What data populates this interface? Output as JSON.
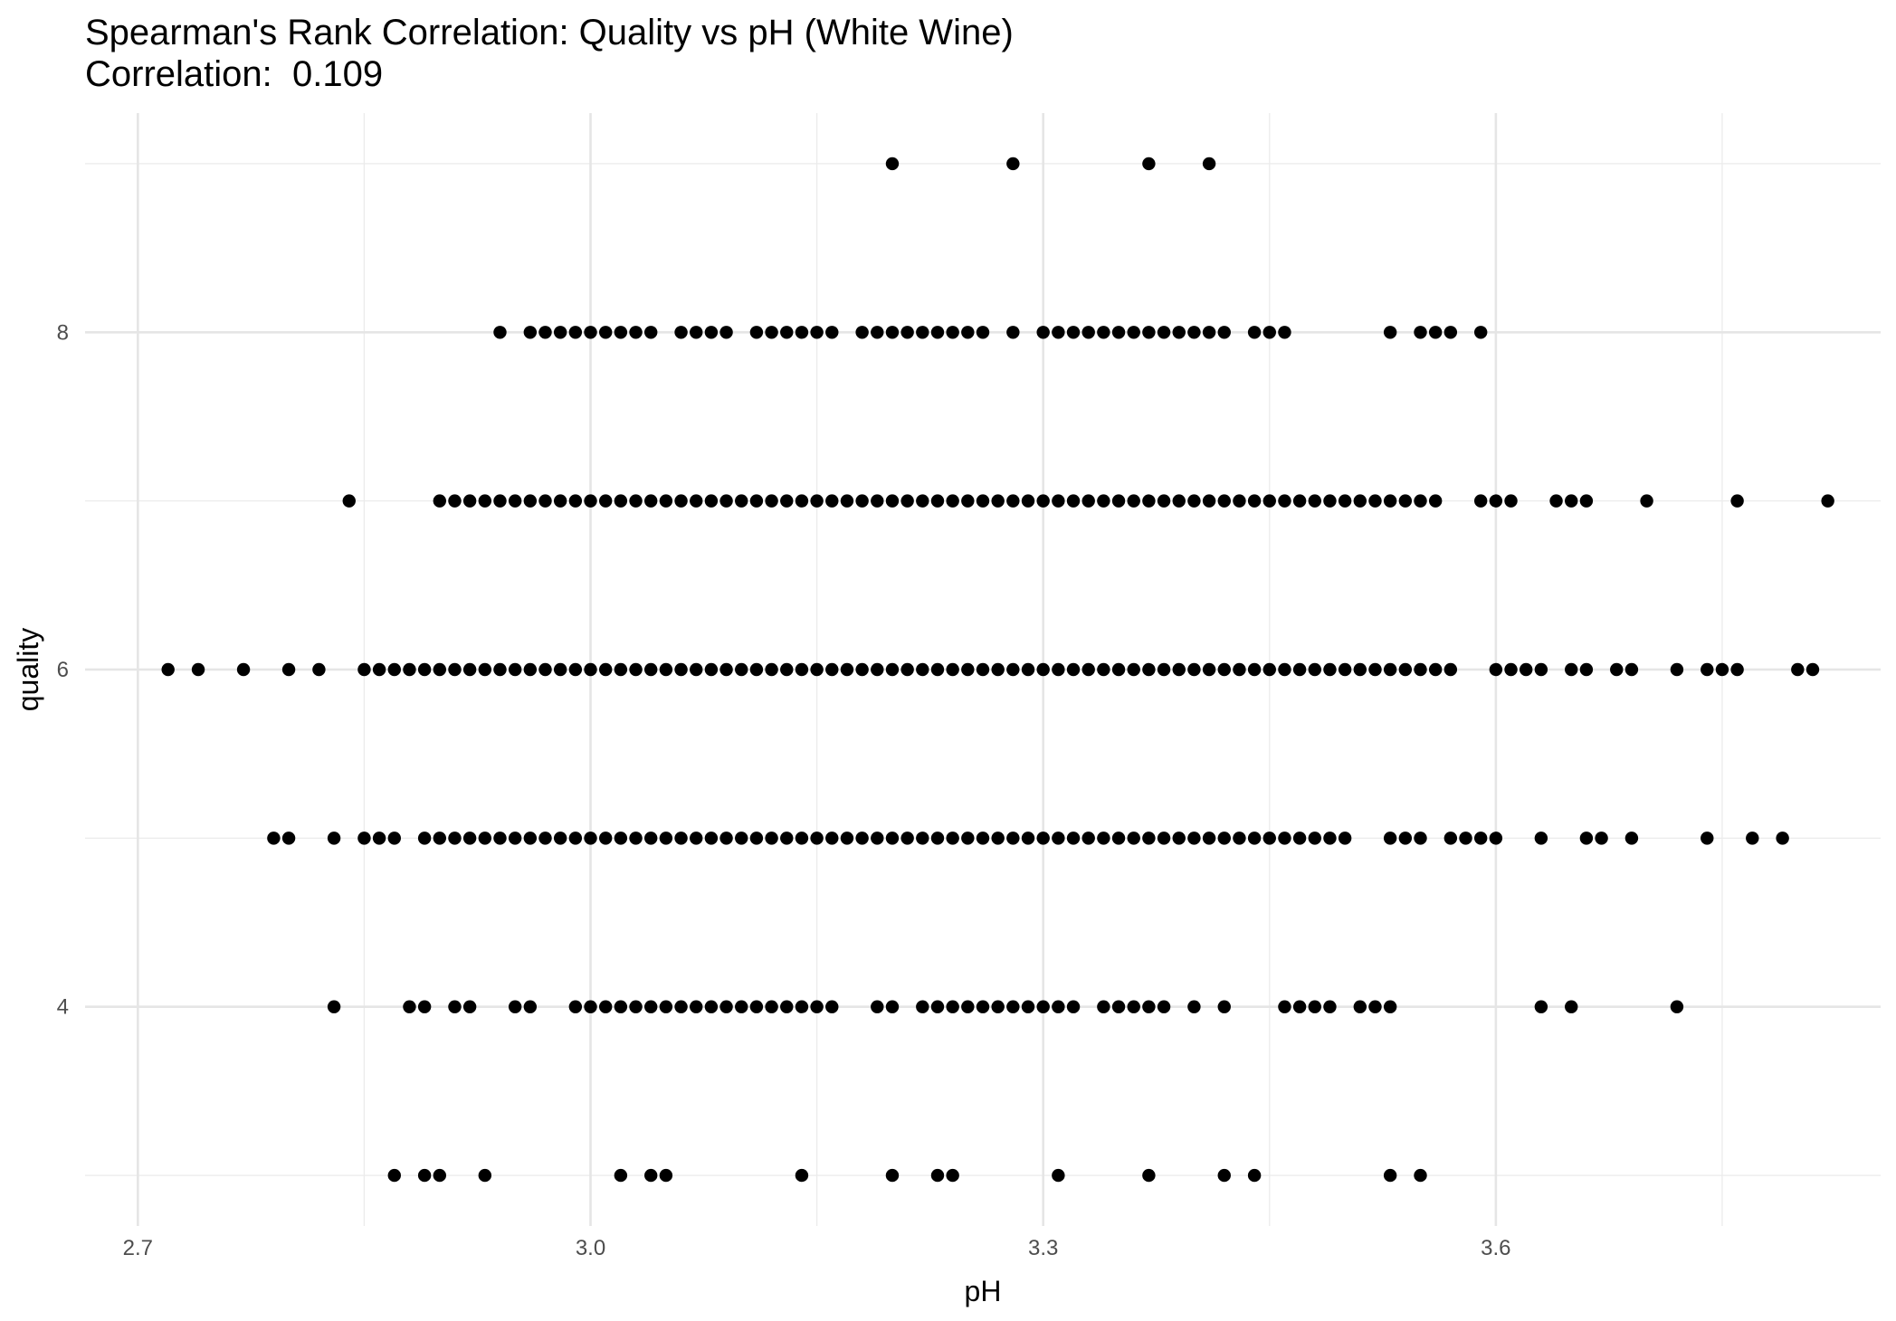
{
  "chart_data": {
    "type": "scatter",
    "title": "Spearman's Rank Correlation: Quality vs pH (White Wine)",
    "subtitle_label": "Correlation:",
    "correlation": "0.109",
    "xlabel": "pH",
    "ylabel": "quality",
    "xlim": [
      2.665,
      3.855
    ],
    "ylim": [
      2.7,
      9.3
    ],
    "x_ticks": [
      "2.7",
      "3.0",
      "3.3",
      "3.6"
    ],
    "x_minor": [
      2.85,
      3.15,
      3.45,
      3.75
    ],
    "y_ticks": [
      "4",
      "6",
      "8"
    ],
    "y_minor": [
      3,
      5,
      7,
      9
    ],
    "grid": true,
    "point_color": "#000000",
    "series": [
      {
        "quality": 9,
        "pH": [
          3.2,
          3.28,
          3.37,
          3.41
        ]
      },
      {
        "quality": 8,
        "pH": [
          2.94,
          2.96,
          2.97,
          2.98,
          2.99,
          3.0,
          3.01,
          3.02,
          3.03,
          3.04,
          3.06,
          3.07,
          3.08,
          3.09,
          3.11,
          3.12,
          3.13,
          3.14,
          3.15,
          3.16,
          3.18,
          3.19,
          3.2,
          3.21,
          3.22,
          3.23,
          3.24,
          3.25,
          3.26,
          3.28,
          3.3,
          3.31,
          3.32,
          3.33,
          3.34,
          3.35,
          3.36,
          3.37,
          3.38,
          3.39,
          3.4,
          3.41,
          3.42,
          3.44,
          3.45,
          3.46,
          3.53,
          3.55,
          3.56,
          3.57,
          3.59
        ]
      },
      {
        "quality": 7,
        "pH": [
          2.84,
          2.9,
          2.91,
          2.92,
          2.93,
          2.94,
          2.95,
          2.96,
          2.97,
          2.98,
          2.99,
          3.0,
          3.01,
          3.02,
          3.03,
          3.04,
          3.05,
          3.06,
          3.07,
          3.08,
          3.09,
          3.1,
          3.11,
          3.12,
          3.13,
          3.14,
          3.15,
          3.16,
          3.17,
          3.18,
          3.19,
          3.2,
          3.21,
          3.22,
          3.23,
          3.24,
          3.25,
          3.26,
          3.27,
          3.28,
          3.29,
          3.3,
          3.31,
          3.32,
          3.33,
          3.34,
          3.35,
          3.36,
          3.37,
          3.38,
          3.39,
          3.4,
          3.41,
          3.42,
          3.43,
          3.44,
          3.45,
          3.46,
          3.47,
          3.48,
          3.49,
          3.5,
          3.51,
          3.52,
          3.53,
          3.54,
          3.55,
          3.56,
          3.59,
          3.6,
          3.61,
          3.64,
          3.65,
          3.66,
          3.7,
          3.76,
          3.82
        ]
      },
      {
        "quality": 6,
        "pH": [
          2.72,
          2.74,
          2.77,
          2.8,
          2.82,
          2.85,
          2.86,
          2.87,
          2.88,
          2.89,
          2.9,
          2.91,
          2.92,
          2.93,
          2.94,
          2.95,
          2.96,
          2.97,
          2.98,
          2.99,
          3.0,
          3.01,
          3.02,
          3.03,
          3.04,
          3.05,
          3.06,
          3.07,
          3.08,
          3.09,
          3.1,
          3.11,
          3.12,
          3.13,
          3.14,
          3.15,
          3.16,
          3.17,
          3.18,
          3.19,
          3.2,
          3.21,
          3.22,
          3.23,
          3.24,
          3.25,
          3.26,
          3.27,
          3.28,
          3.29,
          3.3,
          3.31,
          3.32,
          3.33,
          3.34,
          3.35,
          3.36,
          3.37,
          3.38,
          3.39,
          3.4,
          3.41,
          3.42,
          3.43,
          3.44,
          3.45,
          3.46,
          3.47,
          3.48,
          3.49,
          3.5,
          3.51,
          3.52,
          3.53,
          3.54,
          3.55,
          3.56,
          3.57,
          3.6,
          3.61,
          3.62,
          3.63,
          3.65,
          3.66,
          3.68,
          3.69,
          3.72,
          3.74,
          3.75,
          3.76,
          3.8,
          3.81
        ]
      },
      {
        "quality": 5,
        "pH": [
          2.79,
          2.8,
          2.83,
          2.85,
          2.86,
          2.87,
          2.89,
          2.9,
          2.91,
          2.92,
          2.93,
          2.94,
          2.95,
          2.96,
          2.97,
          2.98,
          2.99,
          3.0,
          3.01,
          3.02,
          3.03,
          3.04,
          3.05,
          3.06,
          3.07,
          3.08,
          3.09,
          3.1,
          3.11,
          3.12,
          3.13,
          3.14,
          3.15,
          3.16,
          3.17,
          3.18,
          3.19,
          3.2,
          3.21,
          3.22,
          3.23,
          3.24,
          3.25,
          3.26,
          3.27,
          3.28,
          3.29,
          3.3,
          3.31,
          3.32,
          3.33,
          3.34,
          3.35,
          3.36,
          3.37,
          3.38,
          3.39,
          3.4,
          3.41,
          3.42,
          3.43,
          3.44,
          3.45,
          3.46,
          3.47,
          3.48,
          3.49,
          3.5,
          3.53,
          3.54,
          3.55,
          3.57,
          3.58,
          3.59,
          3.6,
          3.63,
          3.66,
          3.67,
          3.69,
          3.74,
          3.77,
          3.79
        ]
      },
      {
        "quality": 4,
        "pH": [
          2.83,
          2.88,
          2.89,
          2.91,
          2.92,
          2.95,
          2.96,
          2.99,
          3.0,
          3.01,
          3.02,
          3.03,
          3.04,
          3.05,
          3.06,
          3.07,
          3.08,
          3.09,
          3.1,
          3.11,
          3.12,
          3.13,
          3.14,
          3.15,
          3.16,
          3.19,
          3.2,
          3.22,
          3.23,
          3.24,
          3.25,
          3.26,
          3.27,
          3.28,
          3.29,
          3.3,
          3.31,
          3.32,
          3.34,
          3.35,
          3.36,
          3.37,
          3.38,
          3.4,
          3.42,
          3.46,
          3.47,
          3.48,
          3.49,
          3.51,
          3.52,
          3.53,
          3.63,
          3.65,
          3.72
        ]
      },
      {
        "quality": 3,
        "pH": [
          2.87,
          2.89,
          2.9,
          2.93,
          3.02,
          3.04,
          3.05,
          3.14,
          3.2,
          3.23,
          3.24,
          3.31,
          3.37,
          3.42,
          3.44,
          3.53,
          3.55
        ]
      }
    ]
  }
}
